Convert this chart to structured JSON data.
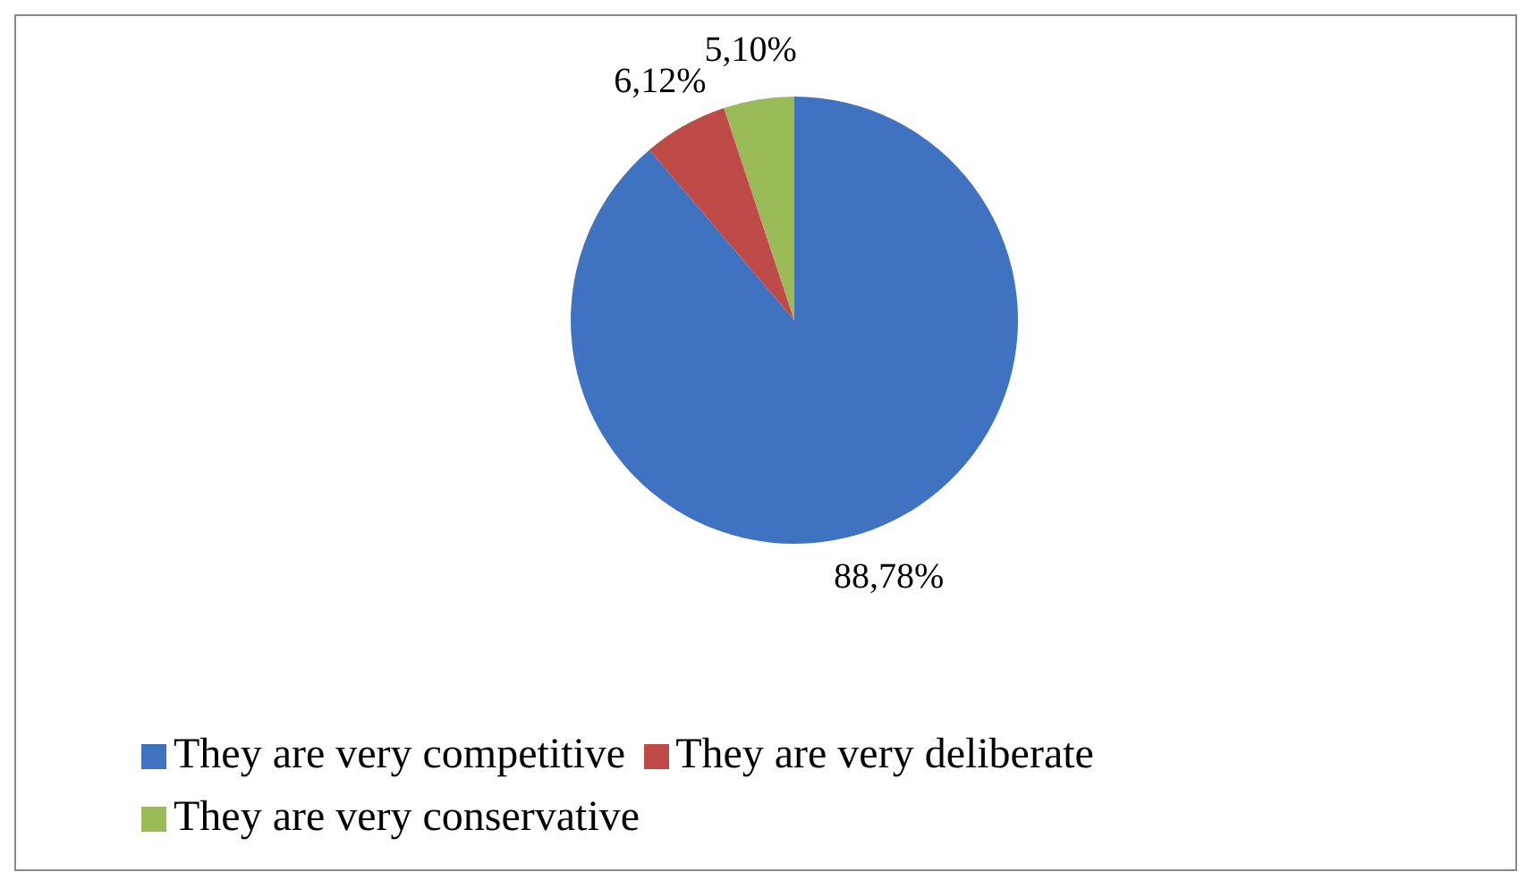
{
  "chart_data": {
    "type": "pie",
    "categories": [
      "They are very competitive",
      "They are very deliberate",
      "They are very conservative"
    ],
    "values": [
      88.78,
      6.12,
      5.1
    ],
    "value_labels": [
      "88,78%",
      "6,12%",
      "5,10%"
    ],
    "colors": [
      "#3f72c0",
      "#be4b48",
      "#9bbb59"
    ],
    "legend": "bottom"
  }
}
